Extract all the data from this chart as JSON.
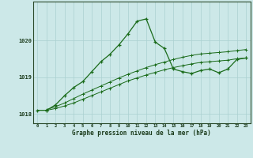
{
  "main_x": [
    0,
    1,
    2,
    3,
    4,
    5,
    6,
    7,
    8,
    9,
    10,
    11,
    12,
    13,
    14,
    15,
    16,
    17,
    18,
    19,
    20,
    21,
    22,
    23
  ],
  "main_y": [
    1018.1,
    1018.1,
    1018.25,
    1018.5,
    1018.72,
    1018.88,
    1019.15,
    1019.42,
    1019.62,
    1019.88,
    1020.18,
    1020.52,
    1020.58,
    1019.95,
    1019.78,
    1019.22,
    1019.15,
    1019.1,
    1019.18,
    1019.22,
    1019.12,
    1019.22,
    1019.48,
    1019.52
  ],
  "line2_x": [
    1,
    2,
    3,
    4,
    5,
    6,
    7,
    8,
    9,
    10,
    11,
    12,
    13,
    14,
    15,
    16,
    17,
    18,
    19,
    20,
    21,
    22,
    23
  ],
  "line2_y": [
    1018.1,
    1018.15,
    1018.22,
    1018.3,
    1018.4,
    1018.5,
    1018.6,
    1018.7,
    1018.8,
    1018.9,
    1018.98,
    1019.06,
    1019.13,
    1019.2,
    1019.26,
    1019.31,
    1019.36,
    1019.4,
    1019.42,
    1019.44,
    1019.46,
    1019.5,
    1019.52
  ],
  "line3_x": [
    1,
    2,
    3,
    4,
    5,
    6,
    7,
    8,
    9,
    10,
    11,
    12,
    13,
    14,
    15,
    16,
    17,
    18,
    19,
    20,
    21,
    22,
    23
  ],
  "line3_y": [
    1018.12,
    1018.2,
    1018.3,
    1018.42,
    1018.54,
    1018.65,
    1018.76,
    1018.87,
    1018.98,
    1019.08,
    1019.17,
    1019.26,
    1019.34,
    1019.41,
    1019.48,
    1019.54,
    1019.59,
    1019.63,
    1019.65,
    1019.67,
    1019.69,
    1019.72,
    1019.75
  ],
  "line_color": "#1a6b1a",
  "bg_color": "#cce8e8",
  "grid_color": "#aad0d0",
  "xlabel": "Graphe pression niveau de la mer (hPa)",
  "xlim": [
    -0.5,
    23.5
  ],
  "ylim": [
    1017.75,
    1021.05
  ],
  "yticks": [
    1018,
    1019,
    1020
  ],
  "xticks": [
    0,
    1,
    2,
    3,
    4,
    5,
    6,
    7,
    8,
    9,
    10,
    11,
    12,
    13,
    14,
    15,
    16,
    17,
    18,
    19,
    20,
    21,
    22,
    23
  ]
}
